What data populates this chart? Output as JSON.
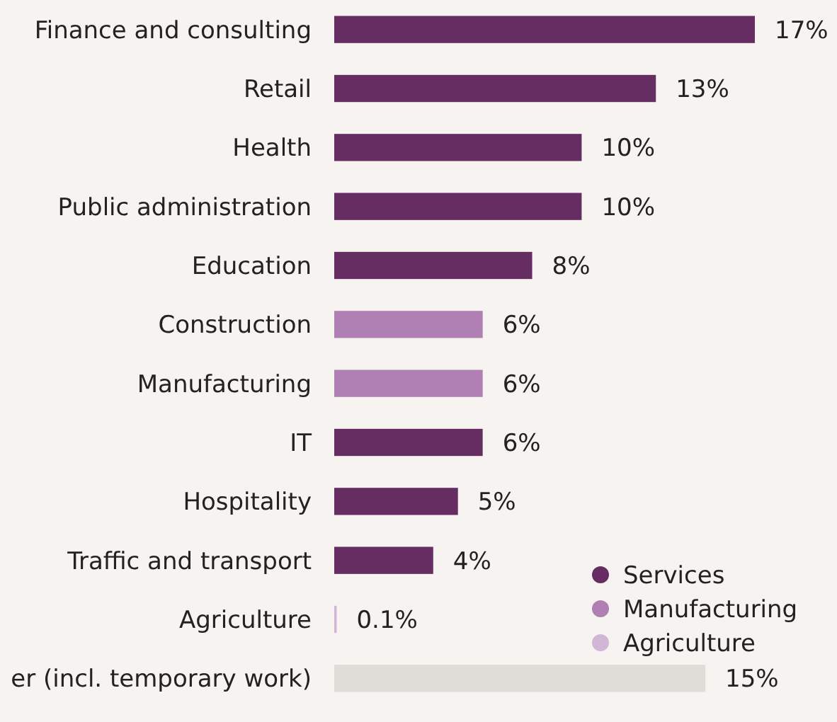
{
  "chart_data": {
    "type": "bar",
    "orientation": "horizontal",
    "categories": [
      "Finance and consulting",
      "Retail",
      "Health",
      "Public administration",
      "Education",
      "Construction",
      "Manufacturing",
      "IT",
      "Hospitality",
      "Traffic and transport",
      "Agriculture",
      "er (incl. temporary work)"
    ],
    "series": [
      {
        "name": "Services",
        "color": "#662d62",
        "values": [
          17,
          13,
          10,
          10,
          8,
          null,
          null,
          6,
          5,
          4,
          null,
          null
        ],
        "value_labels": [
          "17%",
          "13%",
          "10%",
          "10%",
          "8%",
          null,
          null,
          "6%",
          "5%",
          "4%",
          null,
          null
        ]
      },
      {
        "name": "Manufacturing",
        "color": "#b07fb4",
        "values": [
          null,
          null,
          null,
          null,
          null,
          6,
          6,
          null,
          null,
          null,
          null,
          null
        ],
        "value_labels": [
          null,
          null,
          null,
          null,
          null,
          "6%",
          "6%",
          null,
          null,
          null,
          null,
          null
        ]
      },
      {
        "name": "Agriculture",
        "color": "#d2b6d6",
        "values": [
          null,
          null,
          null,
          null,
          null,
          null,
          null,
          null,
          null,
          null,
          0.1,
          null
        ],
        "value_labels": [
          null,
          null,
          null,
          null,
          null,
          null,
          null,
          null,
          null,
          null,
          "0.1%",
          null
        ]
      },
      {
        "color": "#e0dcd8",
        "values": [
          null,
          null,
          null,
          null,
          null,
          null,
          null,
          null,
          null,
          null,
          null,
          15
        ],
        "value_labels": [
          null,
          null,
          null,
          null,
          null,
          null,
          null,
          null,
          null,
          null,
          null,
          "15%"
        ]
      }
    ],
    "xlim": [
      0,
      17
    ],
    "tick_labels": "y",
    "legend": "bottom right",
    "grid": false
  }
}
